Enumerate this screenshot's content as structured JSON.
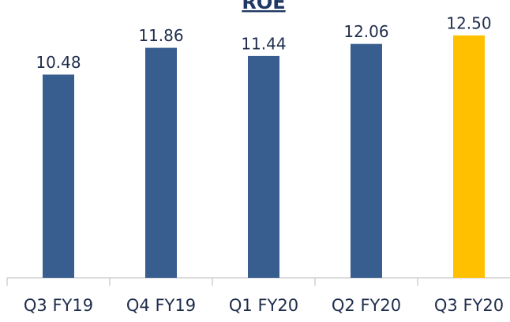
{
  "chart_data": {
    "type": "bar",
    "title": "ROE",
    "categories": [
      "Q3 FY19",
      "Q4 FY19",
      "Q1 FY20",
      "Q2 FY20",
      "Q3 FY20"
    ],
    "values": [
      10.48,
      11.86,
      11.44,
      12.06,
      12.5
    ],
    "value_labels": [
      "10.48",
      "11.86",
      "11.44",
      "12.06",
      "12.50"
    ],
    "colors": [
      "#375e8f",
      "#375e8f",
      "#375e8f",
      "#375e8f",
      "#ffc000"
    ],
    "ylim": [
      0,
      14
    ]
  }
}
